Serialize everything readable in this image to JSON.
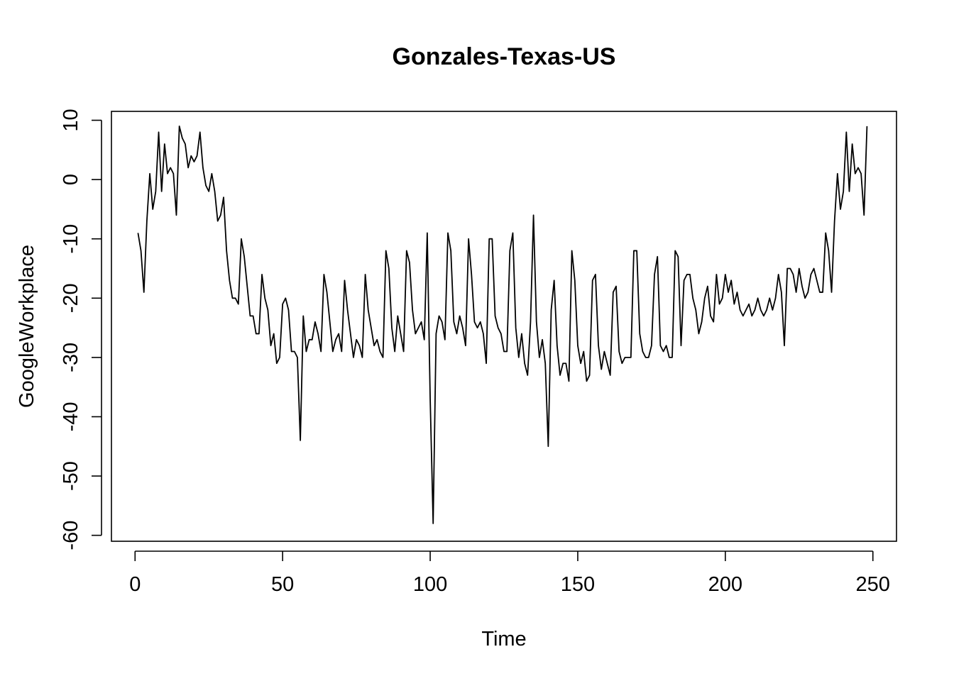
{
  "chart_data": {
    "type": "line",
    "title": "Gonzales-Texas-US",
    "xlabel": "Time",
    "ylabel": "GoogleWorkplace",
    "xlim": [
      -8,
      258
    ],
    "ylim": [
      -61,
      11.5
    ],
    "xticks": [
      0,
      50,
      100,
      150,
      200,
      250
    ],
    "yticks": [
      -60,
      -50,
      -40,
      -30,
      -20,
      -10,
      0,
      10
    ],
    "grid": false,
    "legend": "none",
    "series": [
      {
        "color": "#000000",
        "x": [
          1,
          2,
          3,
          4,
          5,
          6,
          7,
          8,
          9,
          10,
          11,
          12,
          13,
          14,
          15,
          16,
          17,
          18,
          19,
          20,
          21,
          22,
          23,
          24,
          25,
          26,
          27,
          28,
          29,
          30,
          31,
          32,
          33,
          34,
          35,
          36,
          37,
          38,
          39,
          40,
          41,
          42,
          43,
          44,
          45,
          46,
          47,
          48,
          49,
          50,
          51,
          52,
          53,
          54,
          55,
          56,
          57,
          58,
          59,
          60,
          61,
          62,
          63,
          64,
          65,
          66,
          67,
          68,
          69,
          70,
          71,
          72,
          73,
          74,
          75,
          76,
          77,
          78,
          79,
          80,
          81,
          82,
          83,
          84,
          85,
          86,
          87,
          88,
          89,
          90,
          91,
          92,
          93,
          94,
          95,
          96,
          97,
          98,
          99,
          100,
          101,
          102,
          103,
          104,
          105,
          106,
          107,
          108,
          109,
          110,
          111,
          112,
          113,
          114,
          115,
          116,
          117,
          118,
          119,
          120,
          121,
          122,
          123,
          124,
          125,
          126,
          127,
          128,
          129,
          130,
          131,
          132,
          133,
          134,
          135,
          136,
          137,
          138,
          139,
          140,
          141,
          142,
          143,
          144,
          145,
          146,
          147,
          148,
          149,
          150,
          151,
          152,
          153,
          154,
          155,
          156,
          157,
          158,
          159,
          160,
          161,
          162,
          163,
          164,
          165,
          166,
          167,
          168,
          169,
          170,
          171,
          172,
          173,
          174,
          175,
          176,
          177,
          178,
          179,
          180,
          181,
          182,
          183,
          184,
          185,
          186,
          187,
          188,
          189,
          190,
          191,
          192,
          193,
          194,
          195,
          196,
          197,
          198,
          199,
          200,
          201,
          202,
          203,
          204,
          205,
          206,
          207,
          208,
          209,
          210,
          211,
          212,
          213,
          214,
          215,
          216,
          217,
          218,
          219,
          220,
          221,
          222,
          223,
          224,
          225,
          226,
          227,
          228,
          229,
          230,
          231,
          232,
          233,
          234,
          235,
          236,
          237,
          238,
          239,
          240,
          241,
          242,
          243,
          244,
          245,
          246,
          247,
          248
        ],
        "y": [
          -9,
          -12,
          -19,
          -7,
          1,
          -5,
          -2,
          8,
          -2,
          6,
          1,
          2,
          1,
          -6,
          9,
          7,
          6,
          2,
          4,
          3,
          4,
          8,
          2,
          -1,
          -2,
          1,
          -2,
          -7,
          -6,
          -3,
          -12,
          -17,
          -20,
          -20,
          -21,
          -10,
          -13,
          -18,
          -23,
          -23,
          -26,
          -26,
          -16,
          -20,
          -22,
          -28,
          -26,
          -31,
          -30,
          -21,
          -20,
          -22,
          -29,
          -29,
          -30,
          -44,
          -23,
          -29,
          -27,
          -27,
          -24,
          -26,
          -29,
          -16,
          -19,
          -24,
          -29,
          -27,
          -26,
          -29,
          -17,
          -22,
          -26,
          -30,
          -27,
          -28,
          -30,
          -16,
          -22,
          -25,
          -28,
          -27,
          -29,
          -30,
          -12,
          -15,
          -25,
          -29,
          -23,
          -26,
          -29,
          -12,
          -14,
          -22,
          -26,
          -25,
          -24,
          -27,
          -9,
          -37,
          -58,
          -26,
          -23,
          -24,
          -27,
          -9,
          -12,
          -24,
          -26,
          -23,
          -25,
          -28,
          -10,
          -16,
          -24,
          -25,
          -24,
          -26,
          -31,
          -10,
          -10,
          -23,
          -25,
          -26,
          -29,
          -29,
          -12,
          -9,
          -25,
          -30,
          -26,
          -31,
          -33,
          -24,
          -6,
          -24,
          -30,
          -27,
          -31,
          -45,
          -22,
          -17,
          -28,
          -33,
          -31,
          -31,
          -34,
          -12,
          -17,
          -28,
          -31,
          -29,
          -34,
          -33,
          -17,
          -16,
          -28,
          -32,
          -29,
          -31,
          -33,
          -19,
          -18,
          -29,
          -31,
          -30,
          -30,
          -30,
          -12,
          -12,
          -26,
          -29,
          -30,
          -30,
          -28,
          -16,
          -13,
          -28,
          -29,
          -28,
          -30,
          -30,
          -12,
          -13,
          -28,
          -17,
          -16,
          -16,
          -20,
          -22,
          -26,
          -24,
          -20,
          -18,
          -23,
          -24,
          -16,
          -21,
          -20,
          -16,
          -19,
          -17,
          -21,
          -19,
          -22,
          -23,
          -22,
          -21,
          -23,
          -22,
          -20,
          -22,
          -23,
          -22,
          -20,
          -22,
          -20,
          -16,
          -19,
          -28,
          -15,
          -15,
          -16,
          -19,
          -15,
          -18,
          -20,
          -19,
          -16,
          -15,
          -17,
          -19,
          -19,
          -9,
          -12,
          -19,
          -7,
          1,
          -5,
          -2,
          8,
          -2,
          6,
          1,
          2,
          1,
          -6,
          9
        ]
      }
    ]
  }
}
